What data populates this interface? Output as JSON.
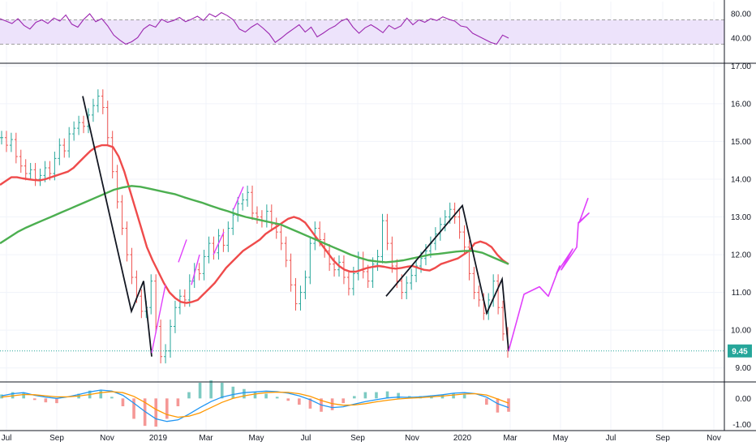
{
  "chart_data": {
    "type": "line",
    "title": "",
    "x_ticks": [
      "Jul",
      "Sep",
      "Nov",
      "2019",
      "Mar",
      "May",
      "Jul",
      "Sep",
      "Nov",
      "2020",
      "Mar",
      "May",
      "Jul",
      "Sep",
      "Nov"
    ],
    "main_pane": {
      "y_ticks": [
        "17.00",
        "16.00",
        "15.00",
        "14.00",
        "13.00",
        "12.00",
        "11.00",
        "10.00",
        "9.00"
      ],
      "ylim": [
        8.65,
        17.05
      ],
      "last_price_label": "9.45",
      "last_price": 9.45,
      "price_close": [
        15.1,
        14.9,
        15.05,
        14.6,
        14.35,
        14.15,
        14.25,
        14.0,
        14.1,
        14.3,
        14.15,
        14.55,
        14.9,
        14.75,
        15.2,
        15.35,
        15.5,
        15.4,
        15.7,
        15.95,
        16.2,
        15.9,
        15.1,
        14.2,
        13.4,
        12.7,
        12.0,
        11.4,
        10.9,
        10.5,
        10.6,
        11.3,
        10.1,
        9.3,
        9.45,
        10.1,
        10.6,
        10.9,
        10.8,
        11.3,
        11.6,
        11.5,
        11.95,
        12.3,
        12.05,
        12.5,
        12.25,
        12.7,
        13.05,
        13.35,
        13.45,
        13.65,
        13.1,
        13.0,
        12.9,
        13.15,
        12.8,
        12.6,
        12.3,
        11.85,
        11.2,
        10.7,
        11.0,
        11.4,
        12.3,
        12.7,
        12.4,
        12.1,
        11.75,
        11.6,
        11.8,
        11.4,
        11.1,
        11.5,
        11.9,
        11.55,
        11.3,
        11.75,
        11.95,
        12.9,
        12.3,
        11.7,
        11.3,
        11.0,
        11.25,
        11.45,
        11.7,
        11.9,
        12.1,
        12.3,
        12.55,
        12.8,
        13.0,
        13.2,
        13.0,
        12.6,
        12.2,
        11.5,
        11.0,
        10.8,
        10.45,
        10.8,
        11.3,
        10.6,
        9.9,
        9.45
      ],
      "series": [
        {
          "name": "",
          "color": "#ef4b4b",
          "values": [
            13.85,
            13.95,
            14.05,
            14.05,
            14.02,
            14.0,
            13.98,
            13.97,
            14.0,
            14.05,
            14.1,
            14.15,
            14.2,
            14.3,
            14.45,
            14.6,
            14.75,
            14.85,
            14.9,
            14.9,
            14.85,
            14.6,
            14.2,
            13.7,
            13.2,
            12.7,
            12.2,
            11.85,
            11.55,
            11.25,
            11.0,
            10.85,
            10.75,
            10.72,
            10.75,
            10.8,
            10.95,
            11.1,
            11.25,
            11.45,
            11.65,
            11.8,
            11.95,
            12.1,
            12.2,
            12.3,
            12.4,
            12.55,
            12.65,
            12.75,
            12.85,
            12.95,
            13.0,
            12.95,
            12.85,
            12.65,
            12.45,
            12.25,
            12.05,
            11.85,
            11.7,
            11.6,
            11.55,
            11.55,
            11.6,
            11.65,
            11.68,
            11.7,
            11.68,
            11.65,
            11.63,
            11.65,
            11.68,
            11.7,
            11.65,
            11.6,
            11.58,
            11.65,
            11.75,
            11.8,
            11.85,
            11.9,
            12.0,
            12.1,
            12.3,
            12.35,
            12.3,
            12.2,
            12.0,
            11.85,
            11.75
          ]
        },
        {
          "name": "",
          "color": "#4caf50",
          "values": [
            12.3,
            12.45,
            12.6,
            12.72,
            12.82,
            12.92,
            13.02,
            13.12,
            13.22,
            13.32,
            13.42,
            13.52,
            13.62,
            13.72,
            13.78,
            13.82,
            13.8,
            13.75,
            13.7,
            13.65,
            13.6,
            13.52,
            13.45,
            13.38,
            13.3,
            13.22,
            13.15,
            13.07,
            13.0,
            12.95,
            12.9,
            12.85,
            12.8,
            12.7,
            12.6,
            12.5,
            12.4,
            12.3,
            12.2,
            12.1,
            12.0,
            11.92,
            11.85,
            11.82,
            11.8,
            11.82,
            11.85,
            11.9,
            11.95,
            12.0,
            12.02,
            12.05,
            12.08,
            12.1,
            12.1,
            12.05,
            11.95,
            11.85,
            11.75
          ]
        }
      ],
      "trend_lines_black": [
        [
          [
            16.2,
            15.0
          ],
          [
            10.5,
            11.3
          ],
          [
            9.3,
            9.3
          ]
        ],
        [
          [
            10.9,
            13.3
          ],
          [
            10.45,
            11.4
          ],
          [
            9.45,
            9.45
          ]
        ]
      ],
      "projection_magenta": [
        9.45,
        10.95,
        11.15,
        10.9,
        11.7,
        11.5,
        12.15,
        11.6,
        12.2,
        12.85,
        13.1,
        12.85,
        13.5
      ]
    },
    "rsi_pane": {
      "y_ticks": [
        "80.00",
        "40.00"
      ],
      "ylim": [
        0,
        100
      ],
      "band": [
        30,
        70
      ],
      "color": "#9c27b0",
      "values": [
        72,
        68,
        64,
        72,
        61,
        55,
        66,
        70,
        64,
        73,
        68,
        78,
        63,
        58,
        71,
        80,
        67,
        72,
        60,
        45,
        37,
        30,
        34,
        41,
        55,
        62,
        58,
        71,
        66,
        69,
        74,
        67,
        71,
        76,
        69,
        80,
        75,
        82,
        77,
        70,
        55,
        50,
        58,
        64,
        56,
        47,
        33,
        40,
        48,
        55,
        62,
        50,
        58,
        42,
        48,
        55,
        60,
        68,
        72,
        58,
        48,
        57,
        62,
        56,
        49,
        61,
        55,
        60,
        73,
        62,
        70,
        66,
        72,
        69,
        75,
        71,
        68,
        60,
        58,
        48,
        43,
        38,
        33,
        30,
        45,
        40
      ]
    },
    "macd_pane": {
      "y_ticks": [
        "0.00",
        "-1.00"
      ],
      "ylim": [
        -1.2,
        0.6
      ],
      "macd_color": "#2196f3",
      "signal_color": "#ff9800",
      "macd": [
        0.1,
        0.18,
        0.22,
        0.12,
        0.05,
        0.0,
        0.06,
        0.15,
        0.25,
        0.32,
        0.28,
        0.12,
        -0.18,
        -0.5,
        -0.78,
        -0.88,
        -0.82,
        -0.6,
        -0.35,
        -0.12,
        0.05,
        0.15,
        0.22,
        0.25,
        0.28,
        0.26,
        0.2,
        0.1,
        -0.05,
        -0.25,
        -0.35,
        -0.32,
        -0.22,
        -0.12,
        -0.05,
        0.02,
        0.05,
        0.04,
        0.06,
        0.1,
        0.14,
        0.2,
        0.22,
        0.18,
        0.05,
        -0.2,
        -0.35
      ],
      "signal": [
        0.05,
        0.1,
        0.15,
        0.14,
        0.1,
        0.06,
        0.06,
        0.09,
        0.15,
        0.22,
        0.26,
        0.22,
        0.08,
        -0.15,
        -0.42,
        -0.62,
        -0.72,
        -0.68,
        -0.55,
        -0.35,
        -0.15,
        0.0,
        0.1,
        0.17,
        0.22,
        0.24,
        0.23,
        0.18,
        0.08,
        -0.08,
        -0.2,
        -0.26,
        -0.25,
        -0.2,
        -0.13,
        -0.07,
        -0.02,
        0.01,
        0.03,
        0.06,
        0.09,
        0.13,
        0.17,
        0.18,
        0.13,
        -0.02,
        -0.18
      ]
    }
  }
}
